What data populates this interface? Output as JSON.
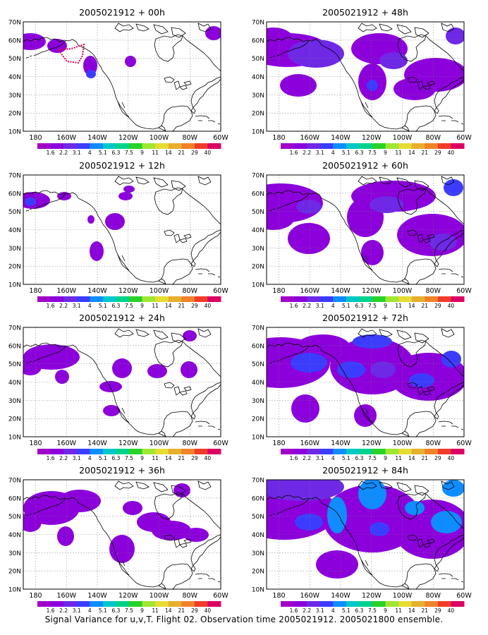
{
  "figure": {
    "caption": "Signal Variance for u,v,T. Flight 02. Observation time 2005021912. 2005021800 ensemble.",
    "lat_ticks": [
      "70N",
      "60N",
      "50N",
      "40N",
      "30N",
      "20N",
      "10N"
    ],
    "lon_ticks": [
      "180",
      "160W",
      "140W",
      "120W",
      "100W",
      "80W",
      "60W"
    ],
    "lon_range_deg": [
      -188,
      -60
    ],
    "lat_range_deg": [
      10,
      70
    ],
    "grid": "dotted",
    "colorbar": {
      "labels": [
        "1.6",
        "2.2",
        "3.1",
        "4",
        "5.1",
        "6.3",
        "7.5",
        "9",
        "11",
        "14",
        "21",
        "29",
        "40"
      ],
      "colors": [
        "#a000c8",
        "#8c00dc",
        "#6e28e6",
        "#3c3cff",
        "#0f8cff",
        "#00c8c8",
        "#00d28c",
        "#28d228",
        "#a0e632",
        "#e6dc32",
        "#e6af2d",
        "#f08228",
        "#f03c28",
        "#dc0064"
      ]
    }
  },
  "panels": [
    {
      "title": "2005021912 + 00h",
      "lead": "00h",
      "flight_track": "red dotted polygon"
    },
    {
      "title": "2005021912 + 12h",
      "lead": "12h"
    },
    {
      "title": "2005021912 + 24h",
      "lead": "24h"
    },
    {
      "title": "2005021912 + 36h",
      "lead": "36h"
    },
    {
      "title": "2005021912 + 48h",
      "lead": "48h"
    },
    {
      "title": "2005021912 + 60h",
      "lead": "60h"
    },
    {
      "title": "2005021912 + 72h",
      "lead": "72h"
    },
    {
      "title": "2005021912 + 84h",
      "lead": "84h"
    }
  ]
}
